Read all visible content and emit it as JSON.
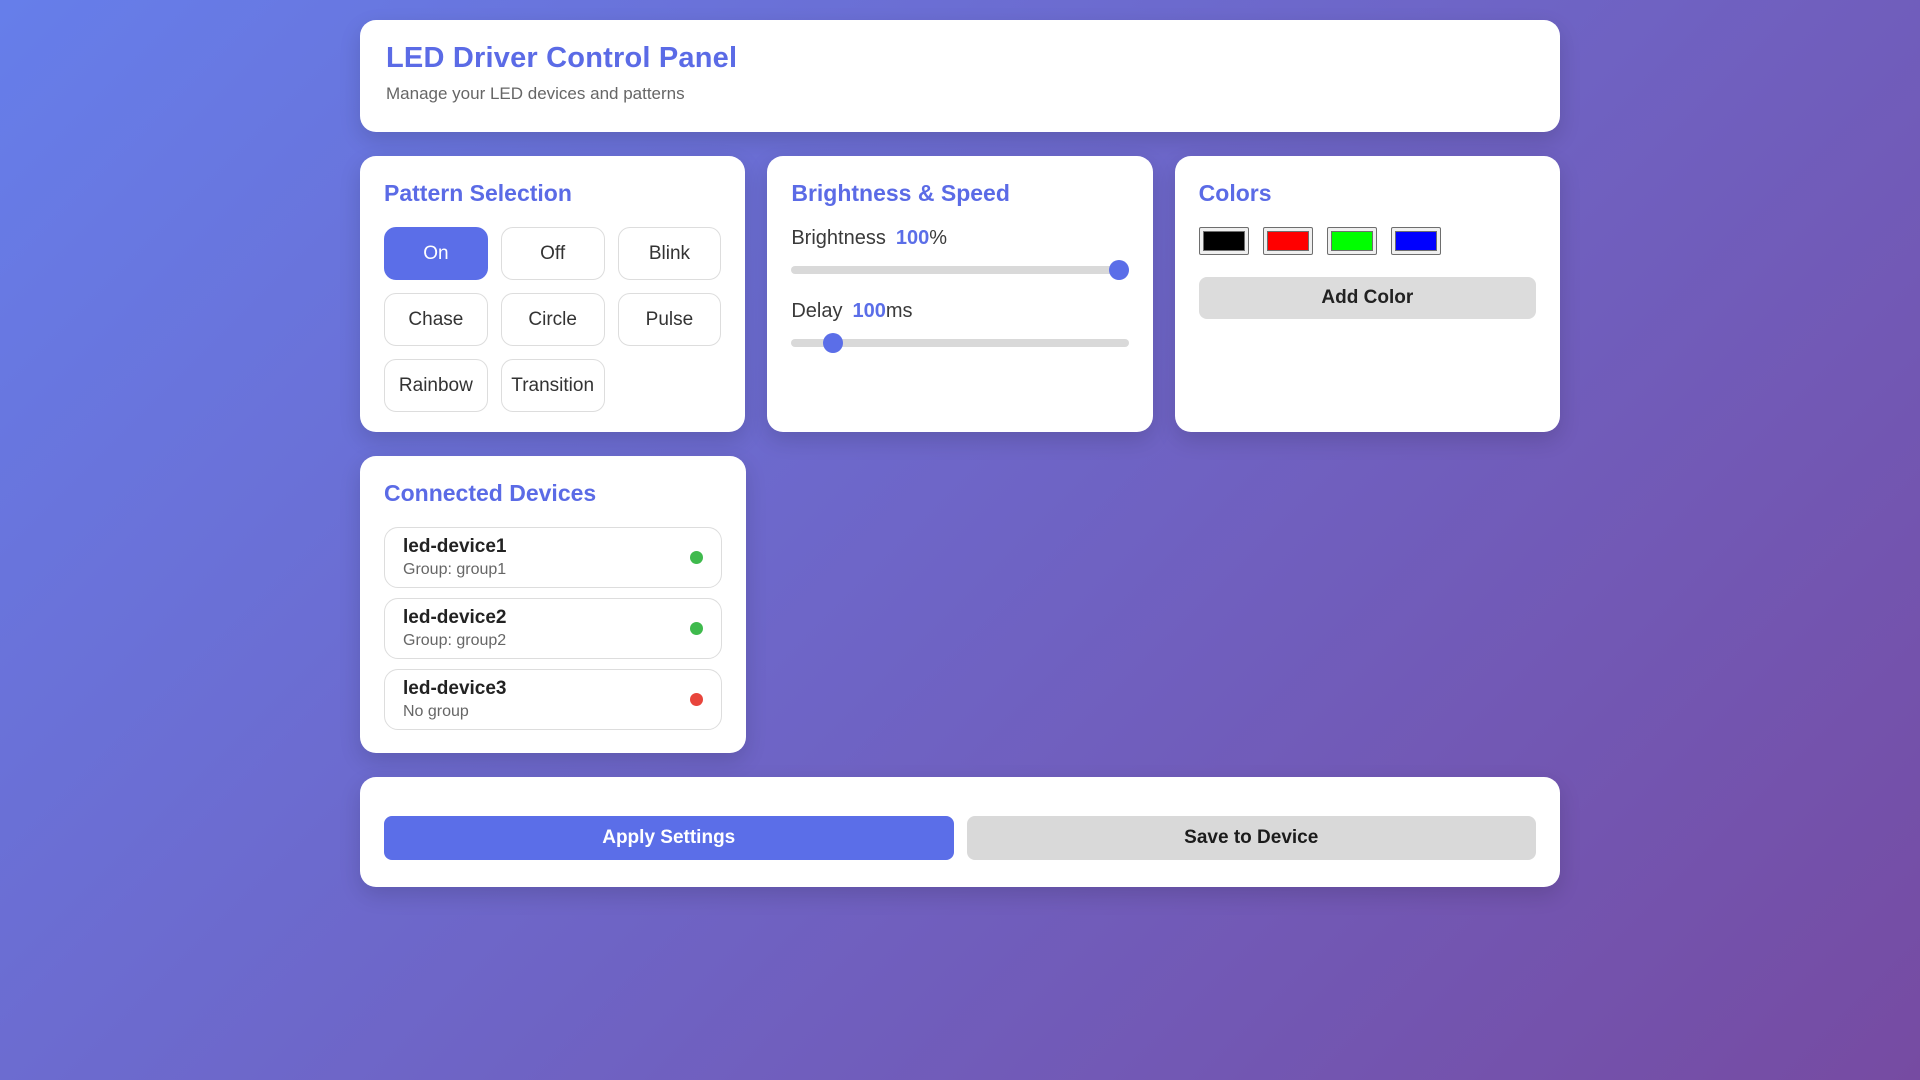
{
  "header": {
    "title": "LED Driver Control Panel",
    "subtitle": "Manage your LED devices and patterns"
  },
  "pattern_section": {
    "title": "Pattern Selection",
    "patterns": [
      "On",
      "Off",
      "Blink",
      "Chase",
      "Circle",
      "Pulse",
      "Rainbow",
      "Transition"
    ],
    "selected": "On"
  },
  "brightness_section": {
    "title": "Brightness & Speed",
    "brightness_label": "Brightness",
    "brightness_value": "100",
    "brightness_unit": "%",
    "delay_label": "Delay",
    "delay_value": "100",
    "delay_unit": "ms"
  },
  "colors_section": {
    "title": "Colors",
    "swatches": [
      "#000000",
      "#ff0000",
      "#00ff00",
      "#0000ff"
    ],
    "add_button_label": "Add Color"
  },
  "devices_section": {
    "title": "Connected Devices",
    "devices": [
      {
        "name": "led-device1",
        "group": "Group: group1",
        "status": "online",
        "status_color": "#3fba4d"
      },
      {
        "name": "led-device2",
        "group": "Group: group2",
        "status": "online",
        "status_color": "#3fba4d"
      },
      {
        "name": "led-device3",
        "group": "No group",
        "status": "offline",
        "status_color": "#e8453c"
      }
    ]
  },
  "actions": {
    "apply_label": "Apply Settings",
    "save_label": "Save to Device"
  },
  "theme": {
    "accent": "#5b6ee8",
    "bg_gradient_start": "#667eea",
    "bg_gradient_end": "#764ba2"
  }
}
